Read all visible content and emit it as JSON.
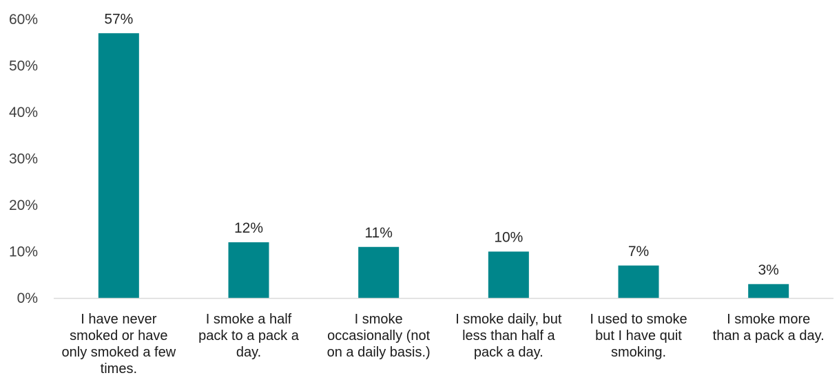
{
  "chart_data": {
    "type": "bar",
    "title": "",
    "xlabel": "",
    "ylabel": "",
    "categories": [
      "I have never smoked or have only smoked a few times.",
      "I smoke a half pack to a pack a day.",
      "I smoke occasionally (not on a daily basis.)",
      "I smoke daily, but less than half a pack a day.",
      "I used to smoke but I have quit smoking.",
      "I smoke more than a pack a day."
    ],
    "category_label_lines": [
      [
        "I have never",
        "smoked or have",
        "only smoked a few",
        "times."
      ],
      [
        "I smoke a half",
        "pack to a pack a",
        "day."
      ],
      [
        "I smoke",
        "occasionally (not",
        "on a daily basis.)"
      ],
      [
        "I smoke daily, but",
        "less than half a",
        "pack a day."
      ],
      [
        "I used to smoke",
        "but I have quit",
        "smoking."
      ],
      [
        "I smoke more",
        "than a pack a day."
      ]
    ],
    "values": [
      57,
      12,
      11,
      10,
      7,
      3
    ],
    "data_labels": [
      "57%",
      "12%",
      "11%",
      "10%",
      "7%",
      "3%"
    ],
    "ylim": [
      0,
      60
    ],
    "yticks": [
      0,
      10,
      20,
      30,
      40,
      50,
      60
    ],
    "ytick_labels": [
      "0%",
      "10%",
      "20%",
      "30%",
      "40%",
      "50%",
      "60%"
    ],
    "bar_color": "#00868B",
    "axis_color": "#D9D9D9",
    "grid": false,
    "legend": "none"
  }
}
